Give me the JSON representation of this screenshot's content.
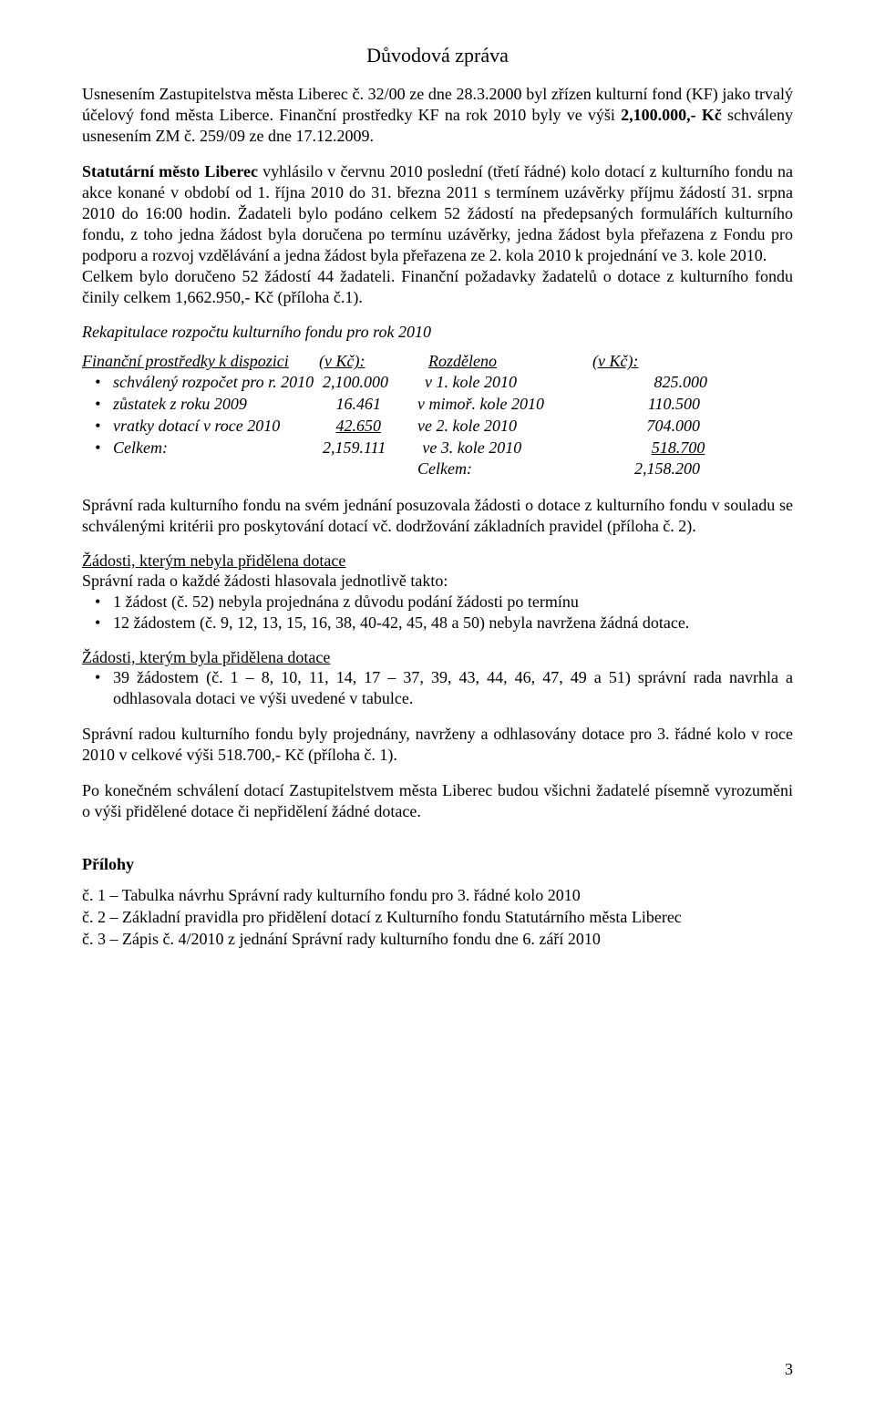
{
  "title": "Důvodová zpráva",
  "para1_before_bold": "Usnesením Zastupitelstva města Liberec č. 32/00 ze dne 28.3.2000 byl zřízen kulturní fond (KF) jako trvalý účelový fond města Liberce. Finanční prostředky KF na rok 2010 byly ve výši ",
  "para1_bold": "2,100.000,- Kč",
  "para1_after_bold": " schváleny usnesením ZM č. 259/09 ze dne 17.12.2009.",
  "para2_bold_lead": "Statutární město Liberec",
  "para2_rest": " vyhlásilo v červnu 2010 poslední (třetí řádné) kolo dotací z kulturního fondu na akce konané v období od 1. října 2010 do 31. března 2011 s termínem uzávěrky příjmu žádostí 31. srpna 2010 do 16:00 hodin. Žadateli bylo podáno celkem 52 žádostí na předepsaných formulářích kulturního fondu, z toho jedna žádost byla doručena po termínu uzávěrky, jedna žádost byla přeřazena z Fondu pro podporu a rozvoj vzdělávání a jedna žádost byla přeřazena ze 2. kola 2010 k projednání ve 3. kole 2010.",
  "para2b": "Celkem bylo doručeno 52 žádostí 44 žadateli. Finanční požadavky žadatelů o dotace z kulturního fondu činily celkem 1,662.950,- Kč (příloha č.1).",
  "recap_head": "Rekapitulace rozpočtu kulturního fondu pro rok 2010",
  "fin_head_left_label": "Finanční prostředky k dispozici",
  "fin_head_left_unit": "(v Kč):",
  "fin_head_right_label": "Rozděleno",
  "fin_head_right_unit": "(v Kč):",
  "budget_rows": [
    {
      "c1": "schválený rozpočet pro r. 2010",
      "c2": "2,100.000",
      "c3": "v 1. kole 2010",
      "c4": "825.000"
    },
    {
      "c1": "zůstatek z roku 2009",
      "c2": "16.461",
      "c3": "v mimoř. kole 2010",
      "c4": "110.500"
    },
    {
      "c1": "vratky dotací v roce 2010",
      "c2": "42.650",
      "c3": "ve 2. kole 2010",
      "c4": "704.000",
      "c2_under": true
    },
    {
      "c1": "Celkem:",
      "c2": "2,159.111",
      "c3": "ve 3. kole 2010",
      "c4": "518.700",
      "c4_under": true
    }
  ],
  "budget_trailing": {
    "c3": "Celkem:",
    "c4": "2,158.200"
  },
  "para3": "Správní rada kulturního fondu na svém jednání posuzovala žádosti o dotace z kulturního fondu v souladu se schválenými kritérii pro poskytování dotací vč. dodržování základních pravidel (příloha č. 2).",
  "sub1_title": "Žádosti, kterým nebyla přidělena dotace",
  "sub1_intro": "Správní rada o každé žádosti hlasovala jednotlivě takto:",
  "sub1_items": [
    "1 žádost (č. 52) nebyla projednána z důvodu podání žádosti po termínu",
    "12 žádostem (č. 9, 12, 13, 15, 16, 38, 40-42, 45, 48 a 50) nebyla navržena žádná dotace."
  ],
  "sub2_title": "Žádosti, kterým byla přidělena dotace",
  "sub2_items": [
    "39 žádostem (č. 1 – 8, 10, 11, 14, 17 – 37, 39, 43, 44, 46, 47, 49 a 51) správní rada navrhla a odhlasovala dotaci ve výši uvedené v tabulce."
  ],
  "para4": "Správní radou kulturního fondu byly projednány, navrženy a odhlasovány dotace pro 3. řádné kolo v roce 2010 v celkové výši 518.700,- Kč (příloha č. 1).",
  "para5": "Po konečném schválení dotací Zastupitelstvem města Liberec budou všichni žadatelé písemně vyrozuměni o výši přidělené dotace či nepřidělení žádné dotace.",
  "attachments_head": "Přílohy",
  "attachments": [
    "č. 1 – Tabulka návrhu Správní rady kulturního fondu pro 3. řádné kolo 2010",
    "č. 2 – Základní pravidla pro přidělení dotací z Kulturního fondu Statutárního města Liberec",
    "č. 3 – Zápis č. 4/2010 z jednání Správní rady kulturního fondu dne 6. září 2010"
  ],
  "page_number": "3"
}
